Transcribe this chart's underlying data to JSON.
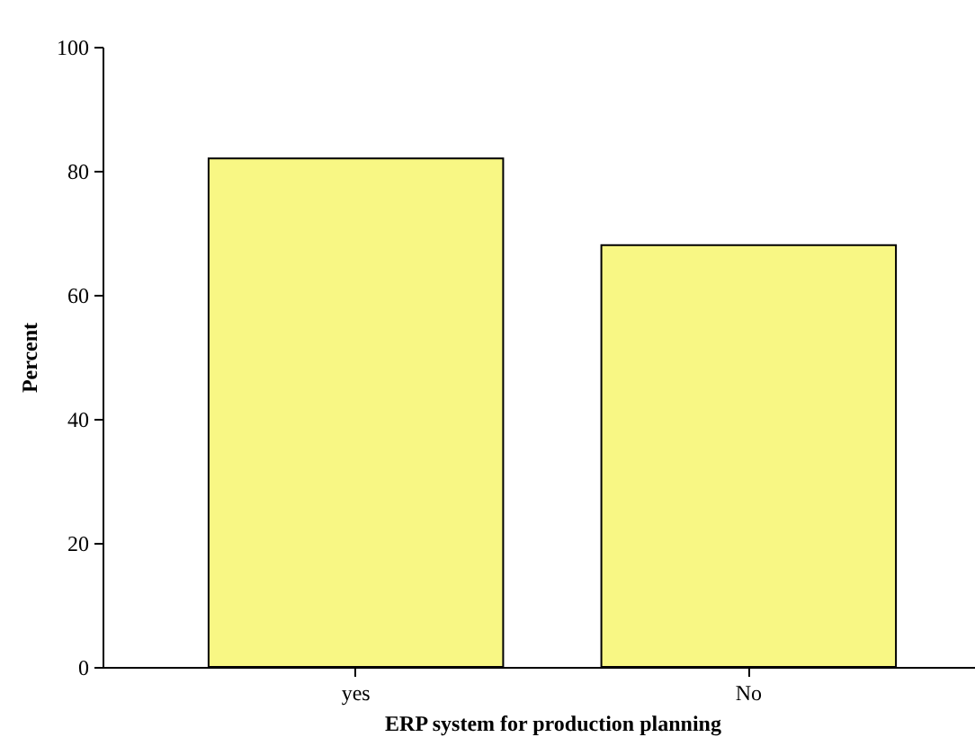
{
  "chart_data": {
    "type": "bar",
    "xlabel": "ERP system for production planning",
    "ylabel": "Percent",
    "categories": [
      "yes",
      "No"
    ],
    "values": [
      82,
      68
    ],
    "color": "#f8f784",
    "ylim": [
      0,
      100
    ],
    "yticks": [
      0,
      20,
      40,
      60,
      80,
      100
    ],
    "grid": false
  }
}
